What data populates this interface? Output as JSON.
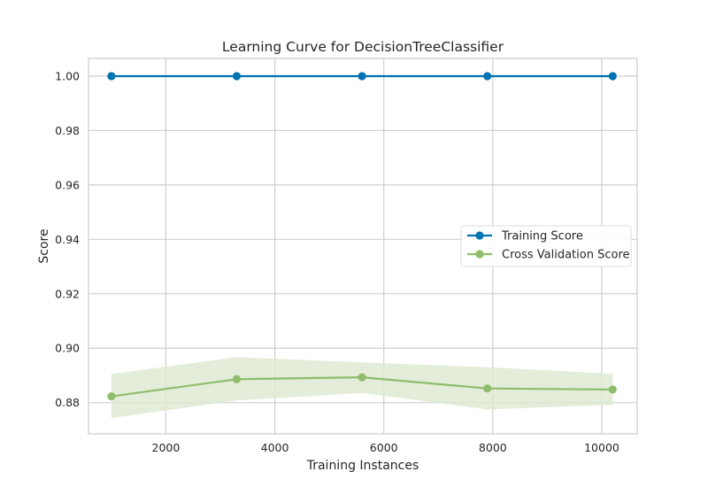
{
  "chart_data": {
    "type": "line",
    "title": "Learning Curve for DecisionTreeClassifier",
    "xlabel": "Training Instances",
    "ylabel": "Score",
    "xlim": [
      580,
      10650
    ],
    "ylim": [
      0.8685,
      1.0065
    ],
    "xticks": [
      2000,
      4000,
      6000,
      8000,
      10000
    ],
    "yticks": [
      0.88,
      0.9,
      0.92,
      0.94,
      0.96,
      0.98,
      1.0
    ],
    "ytick_format": "2dp",
    "grid": true,
    "legend_position": "center-right",
    "x": [
      1000,
      3300,
      5600,
      7900,
      10200
    ],
    "series": [
      {
        "name": "Training Score",
        "color": "#0072b2",
        "values": [
          1.0,
          1.0,
          1.0,
          1.0,
          1.0
        ],
        "band_lower": [
          1.0,
          1.0,
          1.0,
          1.0,
          1.0
        ],
        "band_upper": [
          1.0,
          1.0,
          1.0,
          1.0,
          1.0
        ]
      },
      {
        "name": "Cross Validation Score",
        "color": "#8fbd6b",
        "band_color": "#dde9cf",
        "values": [
          0.8823,
          0.8886,
          0.8893,
          0.8852,
          0.8848
        ],
        "band_lower": [
          0.8743,
          0.8808,
          0.8835,
          0.8775,
          0.8792
        ],
        "band_upper": [
          0.8905,
          0.8967,
          0.8948,
          0.893,
          0.8906
        ]
      }
    ]
  }
}
